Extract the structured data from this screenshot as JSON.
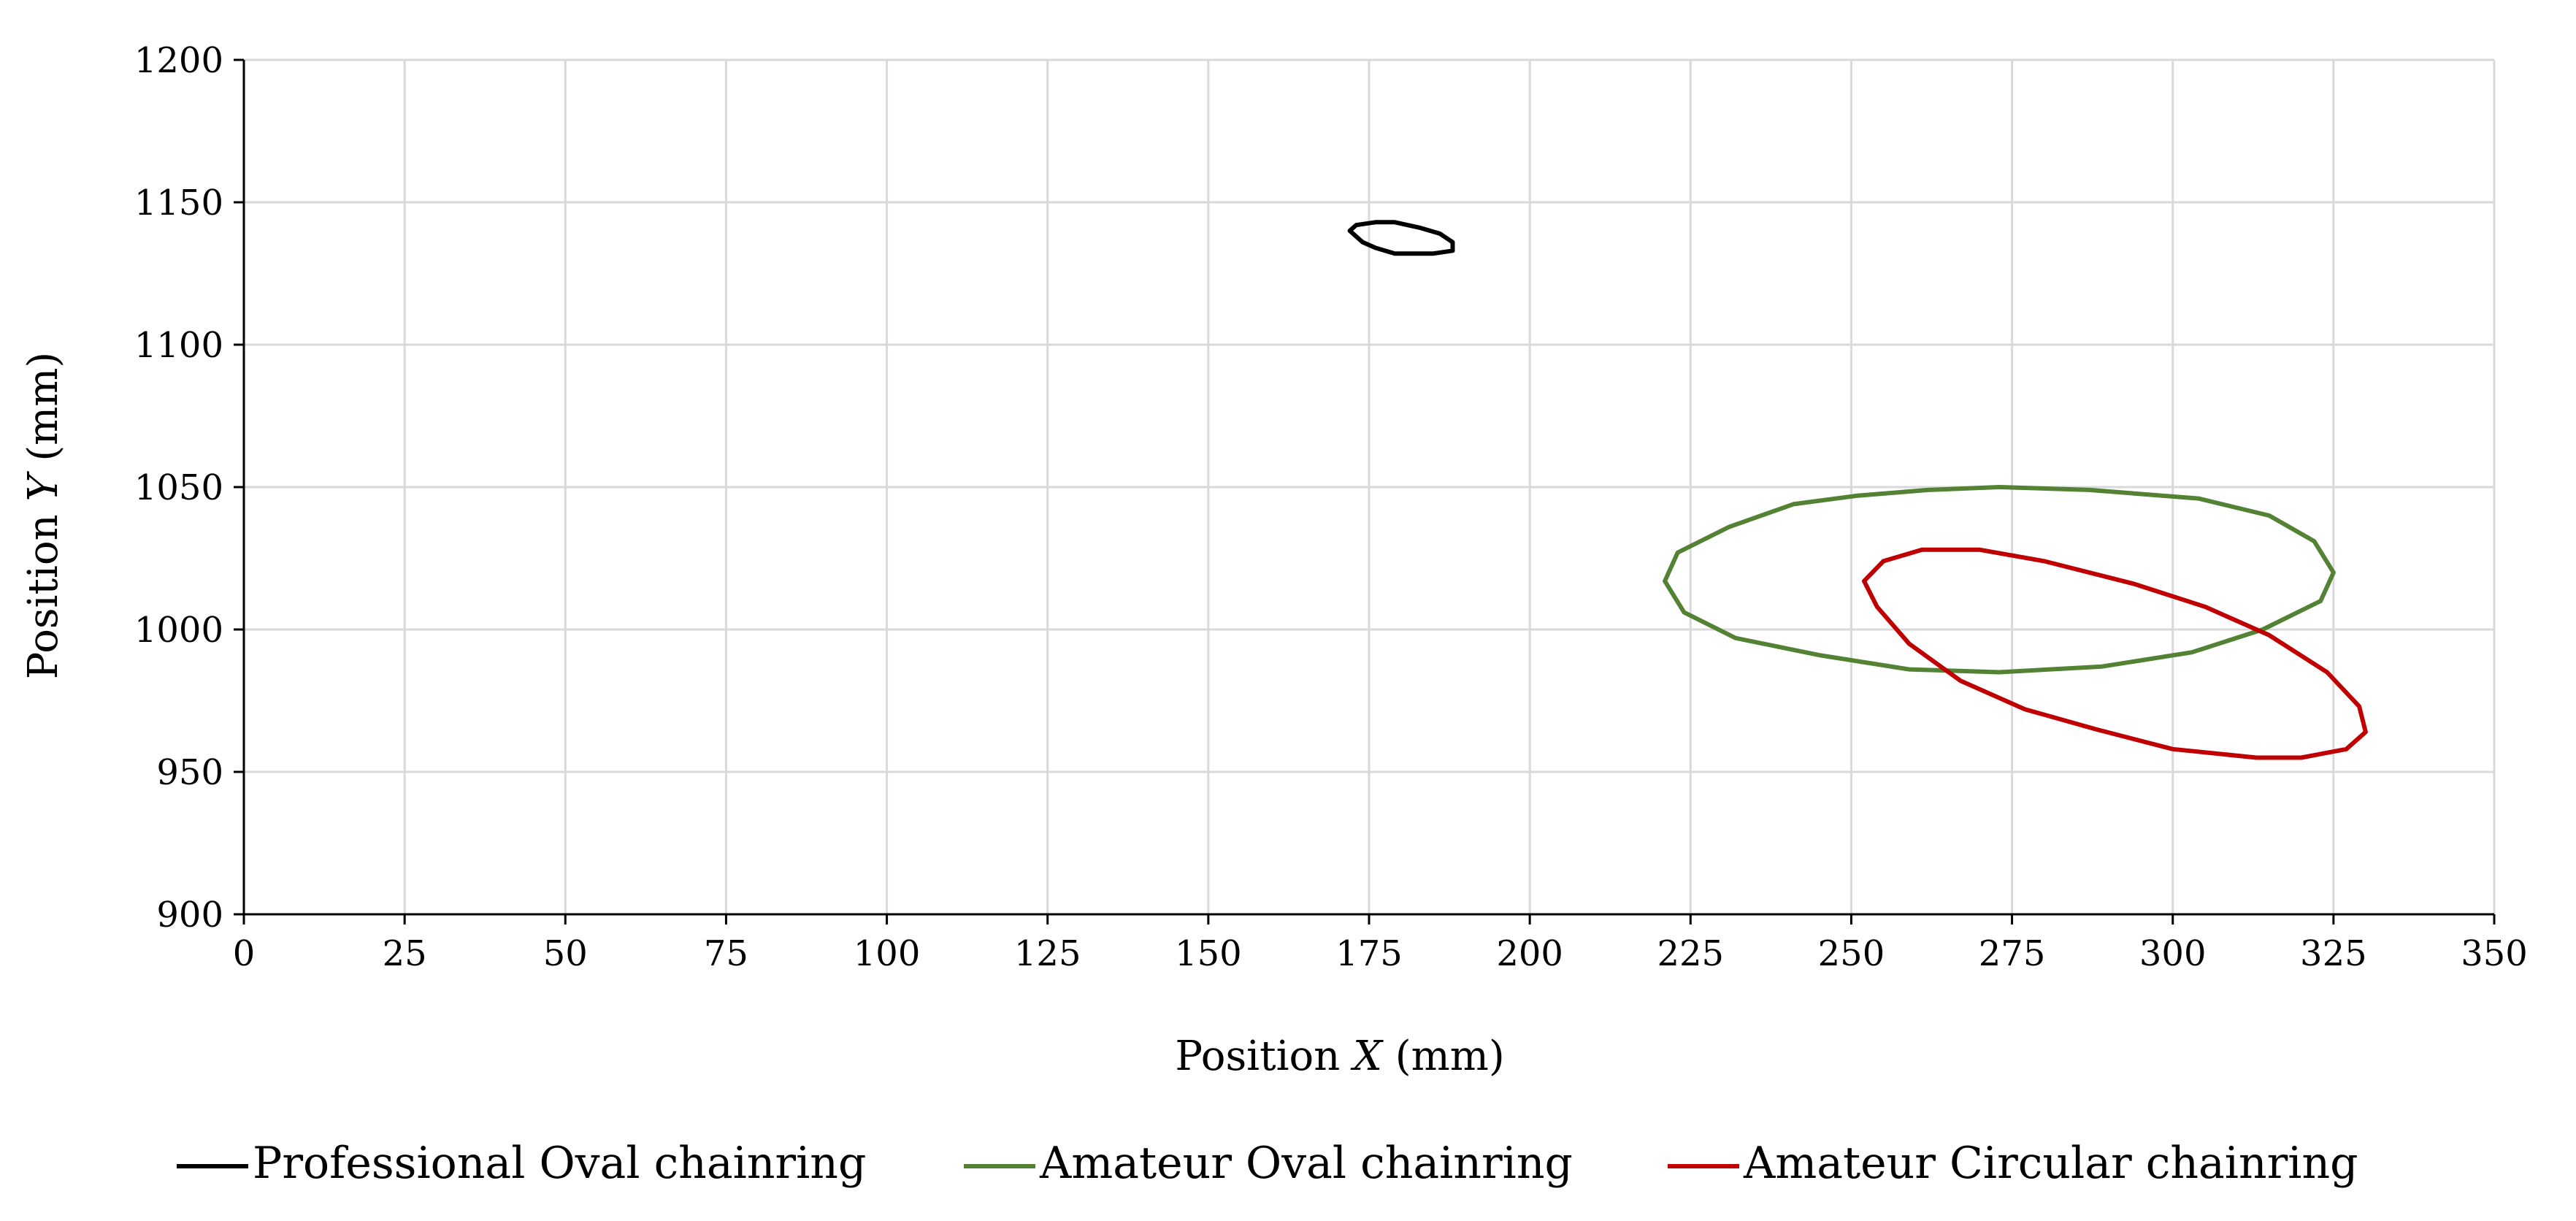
{
  "chart_data": {
    "type": "scatter",
    "title": "",
    "xlabel": "Position X (mm)",
    "ylabel": "Position Y (mm)",
    "xlabel_parts": {
      "prefix": "Position ",
      "var": "X",
      "suffix": " (mm)"
    },
    "ylabel_parts": {
      "prefix": "Position ",
      "var": "Y",
      "suffix": " (mm)"
    },
    "xlim": [
      0,
      350
    ],
    "ylim": [
      900,
      1200
    ],
    "xticks": [
      0,
      25,
      50,
      75,
      100,
      125,
      150,
      175,
      200,
      225,
      250,
      275,
      300,
      325,
      350
    ],
    "yticks": [
      900,
      950,
      1000,
      1050,
      1100,
      1150,
      1200
    ],
    "grid": true,
    "legend_position": "bottom",
    "series": [
      {
        "name": "Professional Oval chainring",
        "color": "#000000",
        "x": [
          172,
          173,
          176,
          179,
          183,
          186,
          188,
          188,
          185,
          182,
          179,
          176,
          174,
          172
        ],
        "y": [
          1140,
          1142,
          1143,
          1143,
          1141,
          1139,
          1136,
          1133,
          1132,
          1132,
          1132,
          1134,
          1136,
          1140
        ]
      },
      {
        "name": "Amateur Oval chainring",
        "color": "#548235",
        "x": [
          221,
          223,
          231,
          241,
          251,
          262,
          273,
          287,
          304,
          315,
          322,
          325,
          323,
          314,
          303,
          289,
          273,
          259,
          245,
          232,
          224,
          221
        ],
        "y": [
          1017,
          1027,
          1036,
          1044,
          1047,
          1049,
          1050,
          1049,
          1046,
          1040,
          1031,
          1020,
          1010,
          1000,
          992,
          987,
          985,
          986,
          991,
          997,
          1006,
          1017
        ]
      },
      {
        "name": "Amateur Circular chainring",
        "color": "#c00000",
        "x": [
          252,
          255,
          261,
          270,
          280,
          294,
          305,
          315,
          324,
          329,
          330,
          327,
          320,
          313,
          300,
          288,
          277,
          267,
          259,
          254,
          252
        ],
        "y": [
          1017,
          1024,
          1028,
          1028,
          1024,
          1016,
          1008,
          998,
          985,
          973,
          964,
          958,
          955,
          955,
          958,
          965,
          972,
          982,
          995,
          1008,
          1017
        ]
      }
    ]
  }
}
